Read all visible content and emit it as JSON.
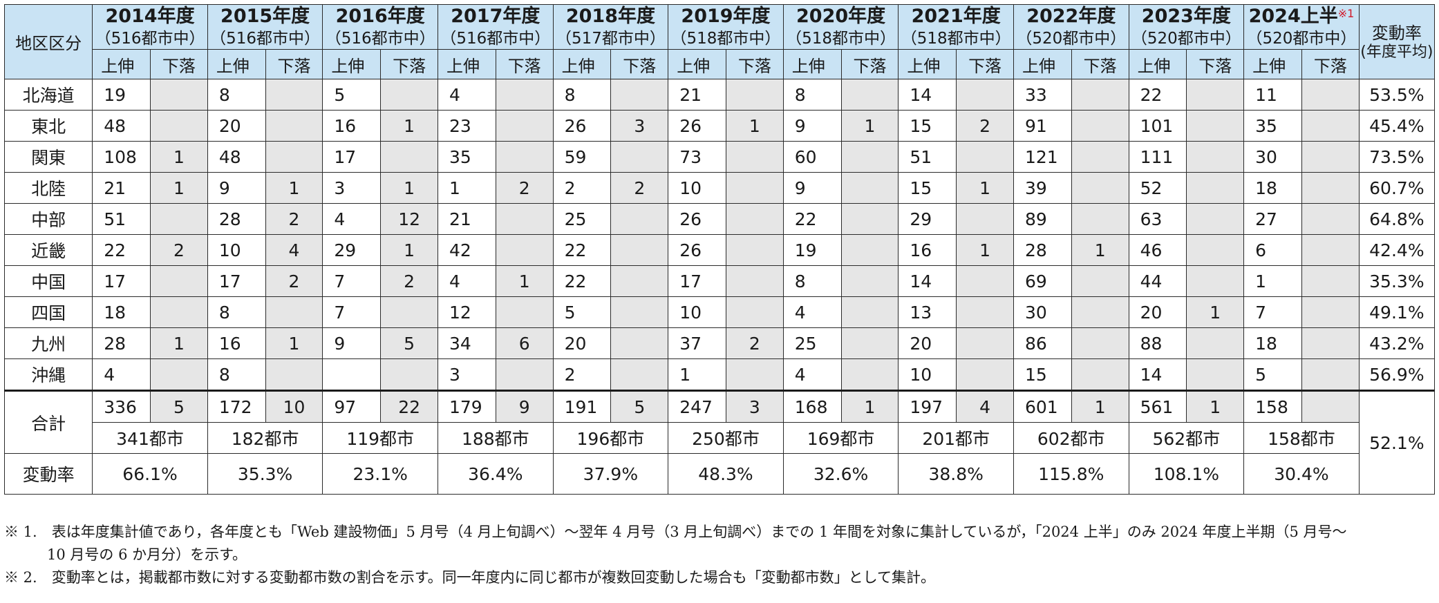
{
  "header": {
    "region_label": "地区区分",
    "rate_label_line1": "変動率",
    "rate_label_line2": "(年度平均)",
    "up_label": "上伸",
    "down_label": "下落",
    "footnote_mark": "※1",
    "years": [
      {
        "label": "2014年度",
        "cities": "（516都市中）"
      },
      {
        "label": "2015年度",
        "cities": "（516都市中）"
      },
      {
        "label": "2016年度",
        "cities": "（516都市中）"
      },
      {
        "label": "2017年度",
        "cities": "（516都市中）"
      },
      {
        "label": "2018年度",
        "cities": "（517都市中）"
      },
      {
        "label": "2019年度",
        "cities": "（518都市中）"
      },
      {
        "label": "2020年度",
        "cities": "（518都市中）"
      },
      {
        "label": "2021年度",
        "cities": "（518都市中）"
      },
      {
        "label": "2022年度",
        "cities": "（520都市中）"
      },
      {
        "label": "2023年度",
        "cities": "（520都市中）"
      },
      {
        "label": "2024上半",
        "cities": "（520都市中）"
      }
    ]
  },
  "rows": [
    {
      "region": "北海道",
      "up": [
        "19",
        "8",
        "5",
        "4",
        "8",
        "21",
        "8",
        "14",
        "33",
        "22",
        "11"
      ],
      "down": [
        "",
        "",
        "",
        "",
        "",
        "",
        "",
        "",
        "",
        "",
        ""
      ],
      "rate": "53.5%"
    },
    {
      "region": "東北",
      "up": [
        "48",
        "20",
        "16",
        "23",
        "26",
        "26",
        "9",
        "15",
        "91",
        "101",
        "35"
      ],
      "down": [
        "",
        "",
        "1",
        "",
        "3",
        "1",
        "1",
        "2",
        "",
        "",
        ""
      ],
      "rate": "45.4%"
    },
    {
      "region": "関東",
      "up": [
        "108",
        "48",
        "17",
        "35",
        "59",
        "73",
        "60",
        "51",
        "121",
        "111",
        "30"
      ],
      "down": [
        "1",
        "",
        "",
        "",
        "",
        "",
        "",
        "",
        "",
        "",
        ""
      ],
      "rate": "73.5%"
    },
    {
      "region": "北陸",
      "up": [
        "21",
        "9",
        "3",
        "1",
        "2",
        "10",
        "9",
        "15",
        "39",
        "52",
        "18"
      ],
      "down": [
        "1",
        "1",
        "1",
        "2",
        "2",
        "",
        "",
        "1",
        "",
        "",
        ""
      ],
      "rate": "60.7%"
    },
    {
      "region": "中部",
      "up": [
        "51",
        "28",
        "4",
        "21",
        "25",
        "26",
        "22",
        "29",
        "89",
        "63",
        "27"
      ],
      "down": [
        "",
        "2",
        "12",
        "",
        "",
        "",
        "",
        "",
        "",
        "",
        ""
      ],
      "rate": "64.8%"
    },
    {
      "region": "近畿",
      "up": [
        "22",
        "10",
        "29",
        "42",
        "22",
        "26",
        "19",
        "16",
        "28",
        "46",
        "6"
      ],
      "down": [
        "2",
        "4",
        "1",
        "",
        "",
        "",
        "",
        "1",
        "1",
        "",
        ""
      ],
      "rate": "42.4%"
    },
    {
      "region": "中国",
      "up": [
        "17",
        "17",
        "7",
        "4",
        "22",
        "17",
        "8",
        "14",
        "69",
        "44",
        "1"
      ],
      "down": [
        "",
        "2",
        "2",
        "1",
        "",
        "",
        "",
        "",
        "",
        "",
        ""
      ],
      "rate": "35.3%"
    },
    {
      "region": "四国",
      "up": [
        "18",
        "8",
        "7",
        "12",
        "5",
        "10",
        "4",
        "13",
        "30",
        "20",
        "7"
      ],
      "down": [
        "",
        "",
        "",
        "",
        "",
        "",
        "",
        "",
        "",
        "1",
        ""
      ],
      "rate": "49.1%"
    },
    {
      "region": "九州",
      "up": [
        "28",
        "16",
        "9",
        "34",
        "20",
        "37",
        "25",
        "20",
        "86",
        "88",
        "18"
      ],
      "down": [
        "1",
        "1",
        "5",
        "6",
        "",
        "2",
        "",
        "",
        "",
        "",
        ""
      ],
      "rate": "43.2%"
    },
    {
      "region": "沖縄",
      "up": [
        "4",
        "8",
        "",
        "3",
        "2",
        "1",
        "4",
        "10",
        "15",
        "14",
        "5"
      ],
      "down": [
        "",
        "",
        "",
        "",
        "",
        "",
        "",
        "",
        "",
        "",
        ""
      ],
      "rate": "56.9%"
    }
  ],
  "total": {
    "label": "合計",
    "up": [
      "336",
      "172",
      "97",
      "179",
      "191",
      "247",
      "168",
      "197",
      "601",
      "561",
      "158"
    ],
    "down": [
      "5",
      "10",
      "22",
      "9",
      "5",
      "3",
      "1",
      "4",
      "1",
      "1",
      ""
    ],
    "cities": [
      "341都市",
      "182都市",
      "119都市",
      "188都市",
      "196都市",
      "250都市",
      "169都市",
      "201都市",
      "602都市",
      "562都市",
      "158都市"
    ],
    "rate": "52.1%"
  },
  "variation": {
    "label": "変動率",
    "values": [
      "66.1%",
      "35.3%",
      "23.1%",
      "36.4%",
      "37.9%",
      "48.3%",
      "32.6%",
      "38.8%",
      "115.8%",
      "108.1%",
      "30.4%"
    ]
  },
  "notes": {
    "note1_line1": "※ 1.　表は年度集計値であり，各年度とも「Web 建設物価」5 月号（4 月上旬調べ）〜翌年 4 月号（3 月上旬調べ）までの 1 年間を対象に集計しているが，「2024 上半」のみ 2024 年度上半期（5 月号〜",
    "note1_line2": "10 月号の 6 か月分）を示す。",
    "note2": "※ 2.　変動率とは，掲載都市数に対する変動都市数の割合を示す。同一年度内に同じ都市が複数回変動した場合も「変動都市数」として集計。"
  }
}
